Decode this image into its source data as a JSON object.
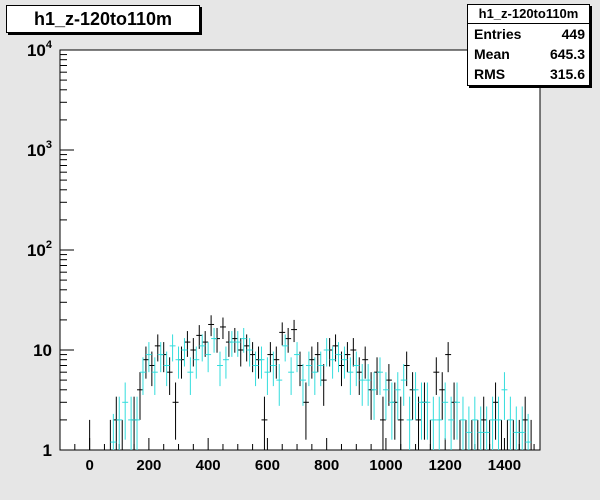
{
  "title": "h1_z-120to110m",
  "stats": {
    "name": "h1_z-120to110m",
    "rows": [
      {
        "label": "Entries",
        "value": "449"
      },
      {
        "label": "Mean",
        "value": "645.3"
      },
      {
        "label": "RMS",
        "value": "315.6"
      }
    ]
  },
  "colors": {
    "background": "#e6e6e6",
    "frame": "#ffffff",
    "series_black": "#000000",
    "series_cyan": "#33dddd"
  },
  "chart_data": {
    "type": "scatter",
    "title": "h1_z-120to110m",
    "xlabel": "",
    "ylabel": "",
    "xlim": [
      -100,
      1520
    ],
    "ylim": [
      1,
      10000
    ],
    "y_scale": "log",
    "x_ticks": [
      "0",
      "200",
      "400",
      "600",
      "800",
      "1000",
      "1200",
      "1400"
    ],
    "y_ticks": [
      "1",
      "10",
      "10^2",
      "10^3",
      "10^4"
    ],
    "bin_width": 20,
    "series": [
      {
        "color": "#000000",
        "points": [
          [
            0,
            1
          ],
          [
            70,
            1
          ],
          [
            90,
            2
          ],
          [
            110,
            1
          ],
          [
            150,
            2
          ],
          [
            170,
            4
          ],
          [
            190,
            8
          ],
          [
            210,
            7
          ],
          [
            230,
            11
          ],
          [
            250,
            9
          ],
          [
            270,
            6
          ],
          [
            290,
            3
          ],
          [
            310,
            8
          ],
          [
            330,
            12
          ],
          [
            350,
            10
          ],
          [
            370,
            14
          ],
          [
            390,
            12
          ],
          [
            410,
            18
          ],
          [
            430,
            13
          ],
          [
            450,
            17
          ],
          [
            470,
            12
          ],
          [
            490,
            13
          ],
          [
            510,
            10
          ],
          [
            530,
            11
          ],
          [
            550,
            9
          ],
          [
            570,
            8
          ],
          [
            590,
            2
          ],
          [
            610,
            9
          ],
          [
            630,
            8
          ],
          [
            650,
            15
          ],
          [
            670,
            13
          ],
          [
            690,
            16
          ],
          [
            710,
            7
          ],
          [
            730,
            3
          ],
          [
            750,
            8
          ],
          [
            770,
            9
          ],
          [
            790,
            5
          ],
          [
            810,
            10
          ],
          [
            830,
            11
          ],
          [
            850,
            7
          ],
          [
            870,
            9
          ],
          [
            890,
            10
          ],
          [
            910,
            6
          ],
          [
            930,
            8
          ],
          [
            950,
            4
          ],
          [
            970,
            6
          ],
          [
            990,
            2
          ],
          [
            1010,
            5
          ],
          [
            1030,
            3
          ],
          [
            1050,
            2
          ],
          [
            1070,
            7
          ],
          [
            1090,
            4
          ],
          [
            1110,
            2
          ],
          [
            1130,
            3
          ],
          [
            1150,
            1
          ],
          [
            1170,
            6
          ],
          [
            1190,
            4
          ],
          [
            1210,
            9
          ],
          [
            1230,
            3
          ],
          [
            1250,
            1
          ],
          [
            1270,
            1
          ],
          [
            1290,
            1
          ],
          [
            1310,
            1
          ],
          [
            1330,
            2
          ],
          [
            1350,
            1
          ],
          [
            1370,
            3
          ],
          [
            1390,
            1
          ],
          [
            1410,
            1
          ],
          [
            1430,
            1
          ],
          [
            1450,
            1
          ],
          [
            1470,
            2
          ],
          [
            1490,
            1
          ]
        ]
      },
      {
        "color": "#33dddd",
        "points": [
          [
            80,
            1.2
          ],
          [
            100,
            2
          ],
          [
            120,
            3
          ],
          [
            140,
            2
          ],
          [
            160,
            2
          ],
          [
            180,
            6
          ],
          [
            200,
            9
          ],
          [
            220,
            6
          ],
          [
            240,
            9
          ],
          [
            260,
            7
          ],
          [
            280,
            11
          ],
          [
            300,
            8
          ],
          [
            320,
            10
          ],
          [
            340,
            6
          ],
          [
            360,
            8
          ],
          [
            380,
            11
          ],
          [
            400,
            9
          ],
          [
            420,
            13
          ],
          [
            440,
            7
          ],
          [
            460,
            8
          ],
          [
            480,
            12
          ],
          [
            500,
            12
          ],
          [
            520,
            13
          ],
          [
            540,
            10
          ],
          [
            560,
            7
          ],
          [
            580,
            8
          ],
          [
            600,
            6
          ],
          [
            620,
            7
          ],
          [
            640,
            5
          ],
          [
            660,
            11
          ],
          [
            680,
            6
          ],
          [
            700,
            9
          ],
          [
            720,
            5
          ],
          [
            740,
            7
          ],
          [
            760,
            6
          ],
          [
            780,
            7
          ],
          [
            800,
            10
          ],
          [
            820,
            8
          ],
          [
            840,
            9
          ],
          [
            860,
            8
          ],
          [
            880,
            6
          ],
          [
            900,
            7
          ],
          [
            920,
            5
          ],
          [
            940,
            5
          ],
          [
            960,
            4
          ],
          [
            980,
            6
          ],
          [
            1000,
            4
          ],
          [
            1020,
            3
          ],
          [
            1040,
            4
          ],
          [
            1060,
            5
          ],
          [
            1080,
            2
          ],
          [
            1100,
            4
          ],
          [
            1120,
            3
          ],
          [
            1140,
            3
          ],
          [
            1160,
            2
          ],
          [
            1180,
            2
          ],
          [
            1200,
            3
          ],
          [
            1220,
            2
          ],
          [
            1240,
            3
          ],
          [
            1260,
            2
          ],
          [
            1280,
            1.5
          ],
          [
            1300,
            2
          ],
          [
            1320,
            1.5
          ],
          [
            1340,
            1.5
          ],
          [
            1360,
            2
          ],
          [
            1380,
            2
          ],
          [
            1400,
            4
          ],
          [
            1420,
            2
          ],
          [
            1440,
            1.5
          ],
          [
            1460,
            1.5
          ],
          [
            1480,
            1.2
          ]
        ]
      }
    ]
  }
}
